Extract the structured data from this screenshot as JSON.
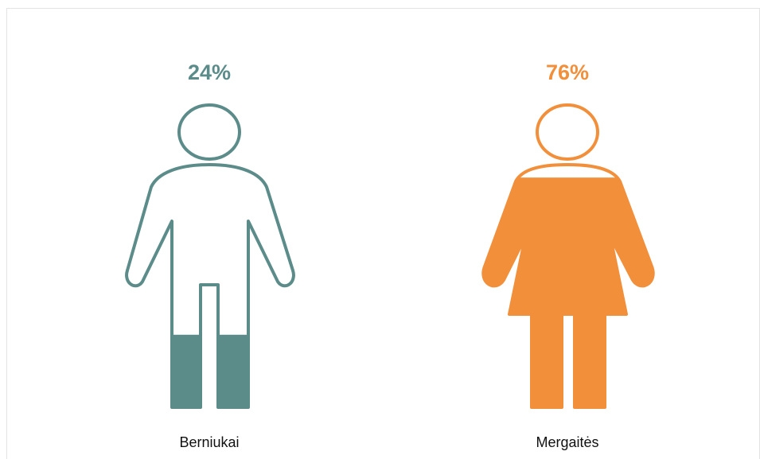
{
  "chart_data": {
    "type": "pictograph",
    "categories": [
      "Berniukai",
      "Mergaitės"
    ],
    "values": [
      24,
      76
    ],
    "value_labels": [
      "24%",
      "76%"
    ],
    "colors": [
      "#5b8c8a",
      "#f28f3b"
    ],
    "ylim": [
      0,
      100
    ]
  }
}
